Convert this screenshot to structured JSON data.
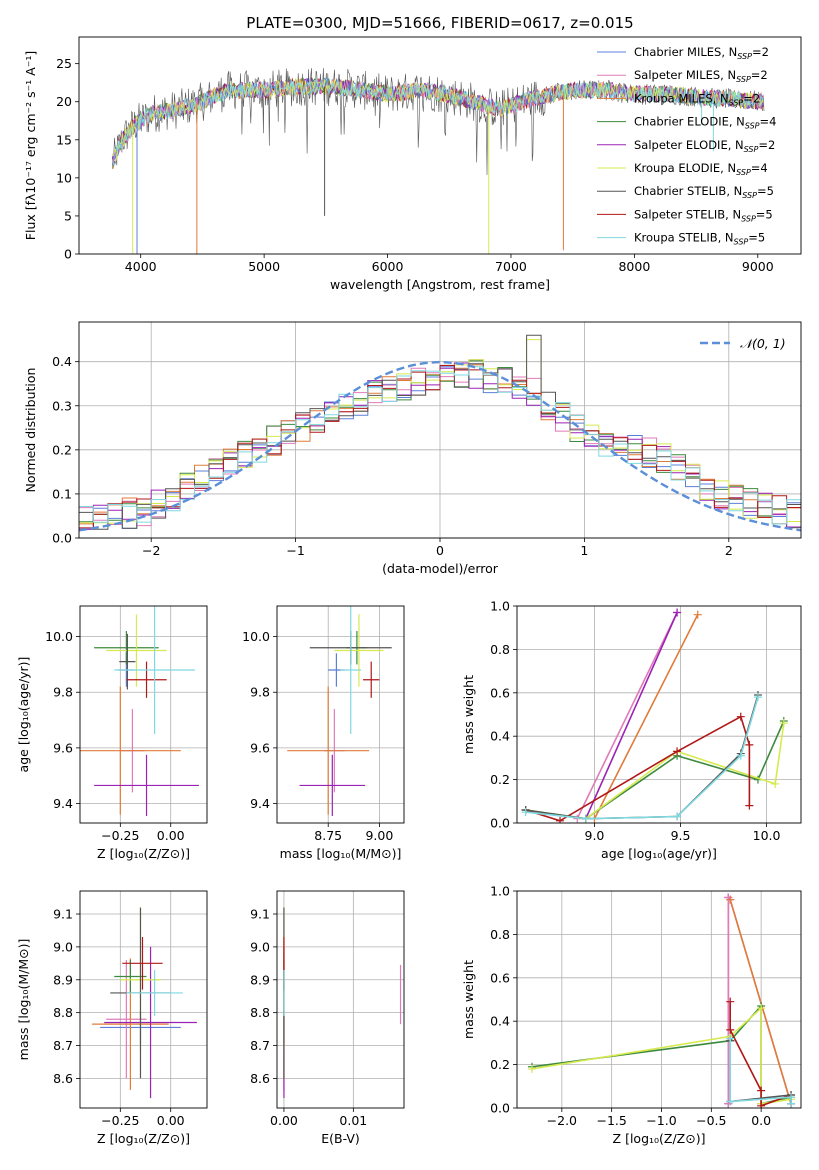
{
  "figure": {
    "title": "PLATE=0300, MJD=51666, FIBERID=0617, z=0.015"
  },
  "colors": {
    "chabrier_miles": "#5b7fd8",
    "salpeter_miles": "#e07bb8",
    "kroupa_miles": "#e07b39",
    "chabrier_elodie": "#3e8a3e",
    "salpeter_elodie": "#9b22b5",
    "kroupa_elodie": "#d6ea4f",
    "chabrier_stelib": "#555555",
    "salpeter_stelib": "#b01818",
    "kroupa_stelib": "#7fd9e0",
    "grid": "#b0b0b0",
    "normal_curve": "#5b8fd8"
  },
  "chart_data": [
    {
      "type": "line",
      "xlabel": "wavelength [Angstrom, rest frame]",
      "ylabel": "Flux [fλ10⁻¹⁷ erg cm⁻² s⁻¹ A⁻¹]",
      "xlim": [
        3500,
        9350
      ],
      "ylim": [
        0,
        28.5
      ],
      "xticks": [
        4000,
        5000,
        6000,
        7000,
        8000,
        9000
      ],
      "yticks": [
        0,
        5,
        10,
        15,
        20,
        25
      ],
      "grid": false,
      "legend_placement": "top-right",
      "legend": [
        {
          "text": "Chabrier MILES, N",
          "sub": "SSP",
          "suffix": "=2",
          "color_key": "chabrier_miles"
        },
        {
          "text": "Salpeter MILES, N",
          "sub": "SSP",
          "suffix": "=2",
          "color_key": "salpeter_miles"
        },
        {
          "text": "Kroupa MILES, N",
          "sub": "SSP",
          "suffix": "=2",
          "color_key": "kroupa_miles"
        },
        {
          "text": "Chabrier ELODIE, N",
          "sub": "SSP",
          "suffix": "=4",
          "color_key": "chabrier_elodie"
        },
        {
          "text": "Salpeter ELODIE, N",
          "sub": "SSP",
          "suffix": "=2",
          "color_key": "salpeter_elodie"
        },
        {
          "text": "Kroupa ELODIE, N",
          "sub": "SSP",
          "suffix": "=4",
          "color_key": "kroupa_elodie"
        },
        {
          "text": "Chabrier STELIB, N",
          "sub": "SSP",
          "suffix": "=5",
          "color_key": "chabrier_stelib"
        },
        {
          "text": "Salpeter STELIB, N",
          "sub": "SSP",
          "suffix": "=5",
          "color_key": "salpeter_stelib"
        },
        {
          "text": "Kroupa STELIB, N",
          "sub": "SSP",
          "suffix": "=5",
          "color_key": "kroupa_stelib"
        }
      ],
      "continuum": [
        [
          3770,
          12
        ],
        [
          3850,
          15
        ],
        [
          3950,
          17
        ],
        [
          4100,
          18.5
        ],
        [
          4300,
          19
        ],
        [
          4500,
          20
        ],
        [
          4700,
          21.5
        ],
        [
          5000,
          21.5
        ],
        [
          5300,
          22
        ],
        [
          5600,
          22
        ],
        [
          6000,
          21
        ],
        [
          6300,
          21.5
        ],
        [
          6600,
          20.5
        ],
        [
          6900,
          19
        ],
        [
          7200,
          20.5
        ],
        [
          7500,
          21.5
        ],
        [
          7800,
          21.5
        ],
        [
          8000,
          21
        ],
        [
          8300,
          21
        ],
        [
          8600,
          20.5
        ],
        [
          9050,
          20
        ]
      ],
      "dips": [
        {
          "x": 3935,
          "to": 0,
          "color_key": "kroupa_elodie"
        },
        {
          "x": 3970,
          "to": 0,
          "color_key": "chabrier_miles"
        },
        {
          "x": 4455,
          "to": 0,
          "color_key": "kroupa_miles"
        },
        {
          "x": 6820,
          "to": 0,
          "color_key": "kroupa_elodie"
        },
        {
          "x": 7425,
          "to": 0.5,
          "color_key": "kroupa_miles"
        },
        {
          "x": 5490,
          "to": 5,
          "color_key": "chabrier_stelib"
        },
        {
          "x": 8640,
          "to": 13.5,
          "color_key": "kroupa_stelib"
        },
        {
          "x": 8545,
          "to": 17,
          "color_key": "kroupa_stelib"
        }
      ]
    },
    {
      "type": "step",
      "xlabel": "(data-model)/error",
      "ylabel": "Normed distribution",
      "xlim": [
        -2.5,
        2.5
      ],
      "ylim": [
        0,
        0.49
      ],
      "xticks": [
        -2,
        -1,
        0,
        1,
        2
      ],
      "yticks": [
        0.0,
        0.1,
        0.2,
        0.3,
        0.4
      ],
      "grid": true,
      "legend_placement": "top-right",
      "legend_label": "𝒩(0, 1)",
      "bin_width": 0.1,
      "envelope": [
        [
          -2.5,
          0.035
        ],
        [
          -2.0,
          0.065
        ],
        [
          -1.5,
          0.165
        ],
        [
          -1.0,
          0.245
        ],
        [
          -0.5,
          0.32
        ],
        [
          0.0,
          0.37
        ],
        [
          0.3,
          0.37
        ],
        [
          0.65,
          0.33
        ],
        [
          1.0,
          0.23
        ],
        [
          1.5,
          0.19
        ],
        [
          2.0,
          0.09
        ],
        [
          2.5,
          0.05
        ]
      ]
    },
    {
      "type": "errorbar",
      "xlabel": "Z [log₁₀(Z/Z⊙)]",
      "ylabel": "age  [log₁₀(age/yr)]",
      "xlim": [
        -0.45,
        0.18
      ],
      "ylim": [
        9.33,
        10.11
      ],
      "xticks": [
        -0.25,
        0.0
      ],
      "yticks": [
        9.4,
        9.6,
        9.8,
        10.0
      ],
      "grid": true,
      "points": [
        {
          "color_key": "chabrier_miles",
          "x": -0.22,
          "xerr": 0.04,
          "y": 9.88,
          "yerr": 0.06
        },
        {
          "color_key": "salpeter_miles",
          "x": -0.19,
          "xerr": 0.06,
          "y": 9.59,
          "yerr": 0.15
        },
        {
          "color_key": "kroupa_miles",
          "x": -0.25,
          "xerr": 0.3,
          "y": 9.59,
          "yerr": 0.23
        },
        {
          "color_key": "chabrier_elodie",
          "x": -0.22,
          "xerr": 0.16,
          "y": 9.96,
          "yerr": 0.06
        },
        {
          "color_key": "salpeter_elodie",
          "x": -0.12,
          "xerr": 0.26,
          "y": 9.465,
          "yerr": 0.11
        },
        {
          "color_key": "kroupa_elodie",
          "x": -0.17,
          "xerr": 0.15,
          "y": 9.95,
          "yerr": 0.13
        },
        {
          "color_key": "chabrier_stelib",
          "x": -0.215,
          "xerr": 0.04,
          "y": 9.91,
          "yerr": 0.1
        },
        {
          "color_key": "salpeter_stelib",
          "x": -0.12,
          "xerr": 0.1,
          "y": 9.845,
          "yerr": 0.065
        },
        {
          "color_key": "kroupa_stelib",
          "x": -0.08,
          "xerr": 0.2,
          "y": 9.88,
          "yerr": 0.23
        }
      ]
    },
    {
      "type": "errorbar",
      "xlabel": "mass [log₁₀(M/M⊙)]",
      "ylabel": "",
      "xlim": [
        8.5,
        9.12
      ],
      "ylim": [
        9.33,
        10.11
      ],
      "xticks": [
        8.75,
        9.0
      ],
      "yticks": [
        9.4,
        9.6,
        9.8,
        10.0
      ],
      "grid": true,
      "points": [
        {
          "color_key": "chabrier_miles",
          "x": 8.79,
          "xerr": 0.04,
          "y": 9.88,
          "yerr": 0.06
        },
        {
          "color_key": "salpeter_miles",
          "x": 8.78,
          "xerr": 0.05,
          "y": 9.59,
          "yerr": 0.15
        },
        {
          "color_key": "kroupa_miles",
          "x": 8.75,
          "xerr": 0.2,
          "y": 9.59,
          "yerr": 0.23
        },
        {
          "color_key": "chabrier_elodie",
          "x": 8.89,
          "xerr": 0.05,
          "y": 9.96,
          "yerr": 0.06
        },
        {
          "color_key": "salpeter_elodie",
          "x": 8.77,
          "xerr": 0.16,
          "y": 9.465,
          "yerr": 0.11
        },
        {
          "color_key": "kroupa_elodie",
          "x": 8.9,
          "xerr": 0.12,
          "y": 9.95,
          "yerr": 0.13
        },
        {
          "color_key": "chabrier_stelib",
          "x": 8.86,
          "xerr": 0.2,
          "y": 9.96,
          "yerr": 0.06
        },
        {
          "color_key": "salpeter_stelib",
          "x": 8.96,
          "xerr": 0.04,
          "y": 9.845,
          "yerr": 0.065
        },
        {
          "color_key": "kroupa_stelib",
          "x": 8.86,
          "xerr": 0.05,
          "y": 9.88,
          "yerr": 0.23
        }
      ]
    },
    {
      "type": "line",
      "xlabel": "age  [log₁₀(age/yr)]",
      "ylabel": "mass weight",
      "xlim": [
        8.55,
        10.2
      ],
      "ylim": [
        0,
        1.0
      ],
      "xticks": [
        9.0,
        9.5,
        10.0
      ],
      "yticks": [
        0.0,
        0.2,
        0.4,
        0.6,
        0.8,
        1.0
      ],
      "grid": true,
      "series": [
        {
          "color_key": "kroupa_miles",
          "x": [
            9.0,
            9.6
          ],
          "y": [
            0.02,
            0.96
          ]
        },
        {
          "color_key": "salpeter_miles",
          "x": [
            8.9,
            9.48
          ],
          "y": [
            0.02,
            0.97
          ]
        },
        {
          "color_key": "salpeter_elodie",
          "x": [
            8.95,
            9.48
          ],
          "y": [
            0.02,
            0.97
          ]
        },
        {
          "color_key": "chabrier_elodie",
          "x": [
            8.6,
            8.95,
            9.48,
            9.95,
            10.1
          ],
          "y": [
            0.06,
            0.02,
            0.31,
            0.2,
            0.47
          ]
        },
        {
          "color_key": "kroupa_elodie",
          "x": [
            8.6,
            8.95,
            9.48,
            10.05,
            10.1
          ],
          "y": [
            0.06,
            0.02,
            0.33,
            0.18,
            0.46
          ]
        },
        {
          "color_key": "salpeter_stelib",
          "x": [
            8.6,
            8.8,
            9.48,
            9.85,
            9.9,
            9.9
          ],
          "y": [
            0.06,
            0.01,
            0.33,
            0.49,
            0.36,
            0.08
          ]
        },
        {
          "color_key": "chabrier_stelib",
          "x": [
            8.6,
            8.95,
            9.48,
            9.85,
            9.95
          ],
          "y": [
            0.06,
            0.02,
            0.03,
            0.32,
            0.59
          ]
        },
        {
          "color_key": "kroupa_stelib",
          "x": [
            8.6,
            8.95,
            9.48,
            9.85,
            9.95
          ],
          "y": [
            0.05,
            0.02,
            0.03,
            0.31,
            0.58
          ]
        }
      ]
    },
    {
      "type": "errorbar",
      "xlabel": "Z [log₁₀(Z/Z⊙)]",
      "ylabel": "mass [log₁₀(M/M⊙)]",
      "xlim": [
        -0.45,
        0.18
      ],
      "ylim": [
        8.51,
        9.17
      ],
      "xticks": [
        -0.25,
        0.0
      ],
      "yticks": [
        8.6,
        8.7,
        8.8,
        8.9,
        9.0,
        9.1
      ],
      "grid": true,
      "points": [
        {
          "color_key": "chabrier_miles",
          "x": -0.15,
          "xerr": 0.2,
          "y": 8.755,
          "yerr": 0.05
        },
        {
          "color_key": "salpeter_miles",
          "x": -0.22,
          "xerr": 0.1,
          "y": 8.78,
          "yerr": 0.18
        },
        {
          "color_key": "kroupa_miles",
          "x": -0.2,
          "xerr": 0.19,
          "y": 8.765,
          "yerr": 0.2
        },
        {
          "color_key": "chabrier_elodie",
          "x": -0.2,
          "xerr": 0.08,
          "y": 8.91,
          "yerr": 0.05
        },
        {
          "color_key": "salpeter_elodie",
          "x": -0.1,
          "xerr": 0.23,
          "y": 8.77,
          "yerr": 0.23
        },
        {
          "color_key": "kroupa_elodie",
          "x": -0.15,
          "xerr": 0.1,
          "y": 8.9,
          "yerr": 0.22
        },
        {
          "color_key": "chabrier_stelib",
          "x": -0.15,
          "xerr": 0.15,
          "y": 8.86,
          "yerr": 0.26
        },
        {
          "color_key": "salpeter_stelib",
          "x": -0.14,
          "xerr": 0.1,
          "y": 8.95,
          "yerr": 0.08
        },
        {
          "color_key": "kroupa_stelib",
          "x": -0.08,
          "xerr": 0.14,
          "y": 8.86,
          "yerr": 0.07
        }
      ]
    },
    {
      "type": "errorbar",
      "xlabel": "E(B-V)",
      "ylabel": "",
      "xlim": [
        -0.001,
        0.0173
      ],
      "ylim": [
        8.51,
        9.17
      ],
      "xticks": [
        0.0,
        0.01
      ],
      "yticks": [
        8.6,
        8.7,
        8.8,
        8.9,
        9.0,
        9.1
      ],
      "grid": true,
      "points": [
        {
          "color_key": "chabrier_miles",
          "x": 0.0,
          "xerr": 0,
          "y": 8.755,
          "yerr": 0.05
        },
        {
          "color_key": "salpeter_miles",
          "x": 0.0168,
          "xerr": 0,
          "y": 8.855,
          "yerr": 0.09
        },
        {
          "color_key": "kroupa_miles",
          "x": 0.0,
          "xerr": 0,
          "y": 8.765,
          "yerr": 0.2
        },
        {
          "color_key": "chabrier_elodie",
          "x": 0.0,
          "xerr": 0,
          "y": 8.91,
          "yerr": 0.05
        },
        {
          "color_key": "salpeter_elodie",
          "x": 0.0,
          "xerr": 0,
          "y": 8.77,
          "yerr": 0.23
        },
        {
          "color_key": "kroupa_elodie",
          "x": 0.0,
          "xerr": 0,
          "y": 8.9,
          "yerr": 0.22
        },
        {
          "color_key": "chabrier_stelib",
          "x": 0.0,
          "xerr": 0,
          "y": 8.86,
          "yerr": 0.26
        },
        {
          "color_key": "salpeter_stelib",
          "x": 0.0,
          "xerr": 0,
          "y": 8.95,
          "yerr": 0.08
        },
        {
          "color_key": "kroupa_stelib",
          "x": 0.0,
          "xerr": 0,
          "y": 8.86,
          "yerr": 0.07
        }
      ]
    },
    {
      "type": "line",
      "xlabel": "Z [log₁₀(Z/Z⊙)]",
      "ylabel": "mass weight",
      "xlim": [
        -2.45,
        0.4
      ],
      "ylim": [
        0,
        1.0
      ],
      "xticks": [
        -2.0,
        -1.5,
        -1.0,
        -0.5,
        0.0
      ],
      "yticks": [
        0.0,
        0.2,
        0.4,
        0.6,
        0.8,
        1.0
      ],
      "grid": true,
      "series": [
        {
          "color_key": "salpeter_elodie",
          "x": [
            -0.33,
            -0.33
          ],
          "y": [
            0.02,
            0.97
          ]
        },
        {
          "color_key": "salpeter_miles",
          "x": [
            -0.33,
            -0.33,
            -0.31,
            0.3
          ],
          "y": [
            0.02,
            0.97,
            0.96,
            0.02
          ]
        },
        {
          "color_key": "kroupa_miles",
          "x": [
            -0.31,
            0.3
          ],
          "y": [
            0.96,
            0.02
          ]
        },
        {
          "color_key": "chabrier_elodie",
          "x": [
            -2.3,
            -0.31,
            0.0,
            0.0,
            0.3
          ],
          "y": [
            0.19,
            0.31,
            0.47,
            0.02,
            0.05
          ]
        },
        {
          "color_key": "kroupa_elodie",
          "x": [
            -2.3,
            -0.31,
            0.0,
            0.0,
            0.3
          ],
          "y": [
            0.18,
            0.33,
            0.46,
            0.02,
            0.04
          ]
        },
        {
          "color_key": "salpeter_stelib",
          "x": [
            -0.31,
            -0.31,
            0.0,
            0.0,
            0.3
          ],
          "y": [
            0.49,
            0.36,
            0.08,
            0.01,
            0.06
          ]
        },
        {
          "color_key": "chabrier_stelib",
          "x": [
            -0.31,
            -0.31,
            0.3,
            0.3
          ],
          "y": [
            0.31,
            0.03,
            0.06,
            0.02
          ]
        },
        {
          "color_key": "kroupa_stelib",
          "x": [
            -0.31,
            -0.31,
            0.3,
            0.3
          ],
          "y": [
            0.32,
            0.03,
            0.05,
            0.02
          ]
        }
      ]
    }
  ]
}
